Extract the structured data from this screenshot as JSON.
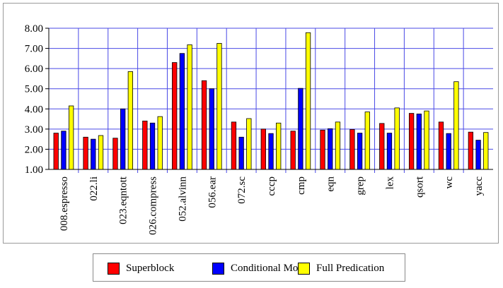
{
  "chart_data": {
    "type": "bar",
    "categories": [
      "008.espresso",
      "022.li",
      "023.eqntott",
      "026.compress",
      "052.alvinn",
      "056.ear",
      "072.sc",
      "cccp",
      "cmp",
      "eqn",
      "grep",
      "lex",
      "qsort",
      "wc",
      "yacc"
    ],
    "series": [
      {
        "name": "Superblock",
        "color": "#ff0000",
        "values": [
          2.8,
          2.6,
          2.55,
          3.4,
          6.3,
          5.4,
          3.35,
          3.0,
          2.9,
          2.95,
          2.98,
          3.28,
          3.78,
          3.35,
          2.85
        ]
      },
      {
        "name": "Conditional Move",
        "color": "#0000ff",
        "values": [
          2.9,
          2.5,
          4.0,
          3.3,
          6.75,
          5.0,
          2.6,
          2.78,
          5.02,
          3.02,
          2.8,
          2.8,
          3.75,
          2.78,
          2.45
        ]
      },
      {
        "name": "Full Predication",
        "color": "#ffff00",
        "values": [
          4.15,
          2.68,
          5.85,
          3.62,
          7.18,
          7.25,
          3.52,
          3.3,
          7.78,
          3.35,
          3.85,
          4.05,
          3.9,
          5.35,
          2.83
        ]
      }
    ],
    "yticks": [
      "1.00",
      "2.00",
      "3.00",
      "4.00",
      "5.00",
      "6.00",
      "7.00",
      "8.00"
    ],
    "ylim": [
      1,
      8
    ],
    "grid": true,
    "legend_position": "bottom"
  }
}
